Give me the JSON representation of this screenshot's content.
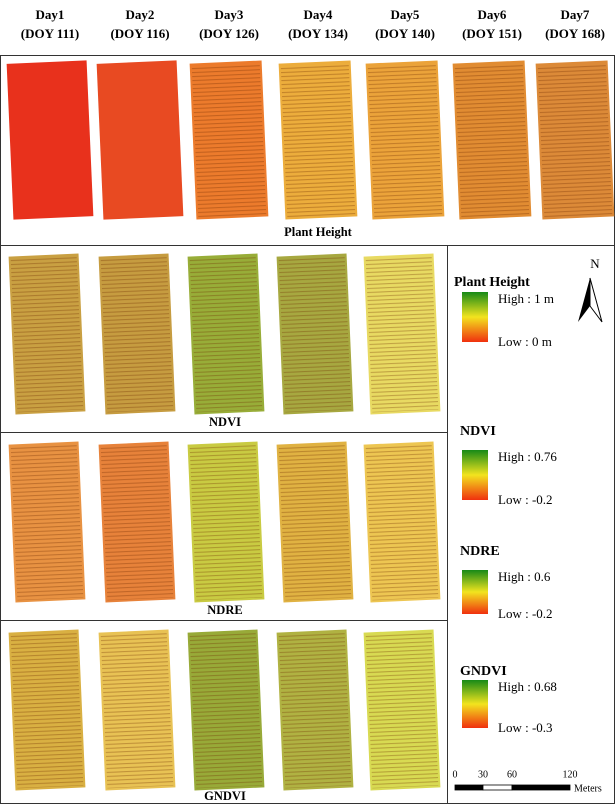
{
  "columns": [
    {
      "day": "Day1",
      "doy": "(DOY 111)"
    },
    {
      "day": "Day2",
      "doy": "(DOY 116)"
    },
    {
      "day": "Day3",
      "doy": "(DOY 126)"
    },
    {
      "day": "Day4",
      "doy": "(DOY 134)"
    },
    {
      "day": "Day5",
      "doy": "(DOY 140)"
    },
    {
      "day": "Day6",
      "doy": "(DOY 151)"
    },
    {
      "day": "Day7",
      "doy": "(DOY 168)"
    }
  ],
  "panels": [
    "Plant Height",
    "NDVI",
    "NDRE",
    "GNDVI"
  ],
  "legend": [
    {
      "title": "Plant Height",
      "high": "High : 1 m",
      "low": "Low : 0 m"
    },
    {
      "title": "NDVI",
      "high": "High : 0.76",
      "low": "Low : -0.2"
    },
    {
      "title": "NDRE",
      "high": "High : 0.6",
      "low": "Low : -0.2"
    },
    {
      "title": "GNDVI",
      "high": "High : 0.68",
      "low": "Low : -0.3"
    }
  ],
  "north": "N",
  "scale_bar": {
    "ticks": [
      "0",
      "30",
      "60",
      "120"
    ],
    "unit": "Meters"
  }
}
